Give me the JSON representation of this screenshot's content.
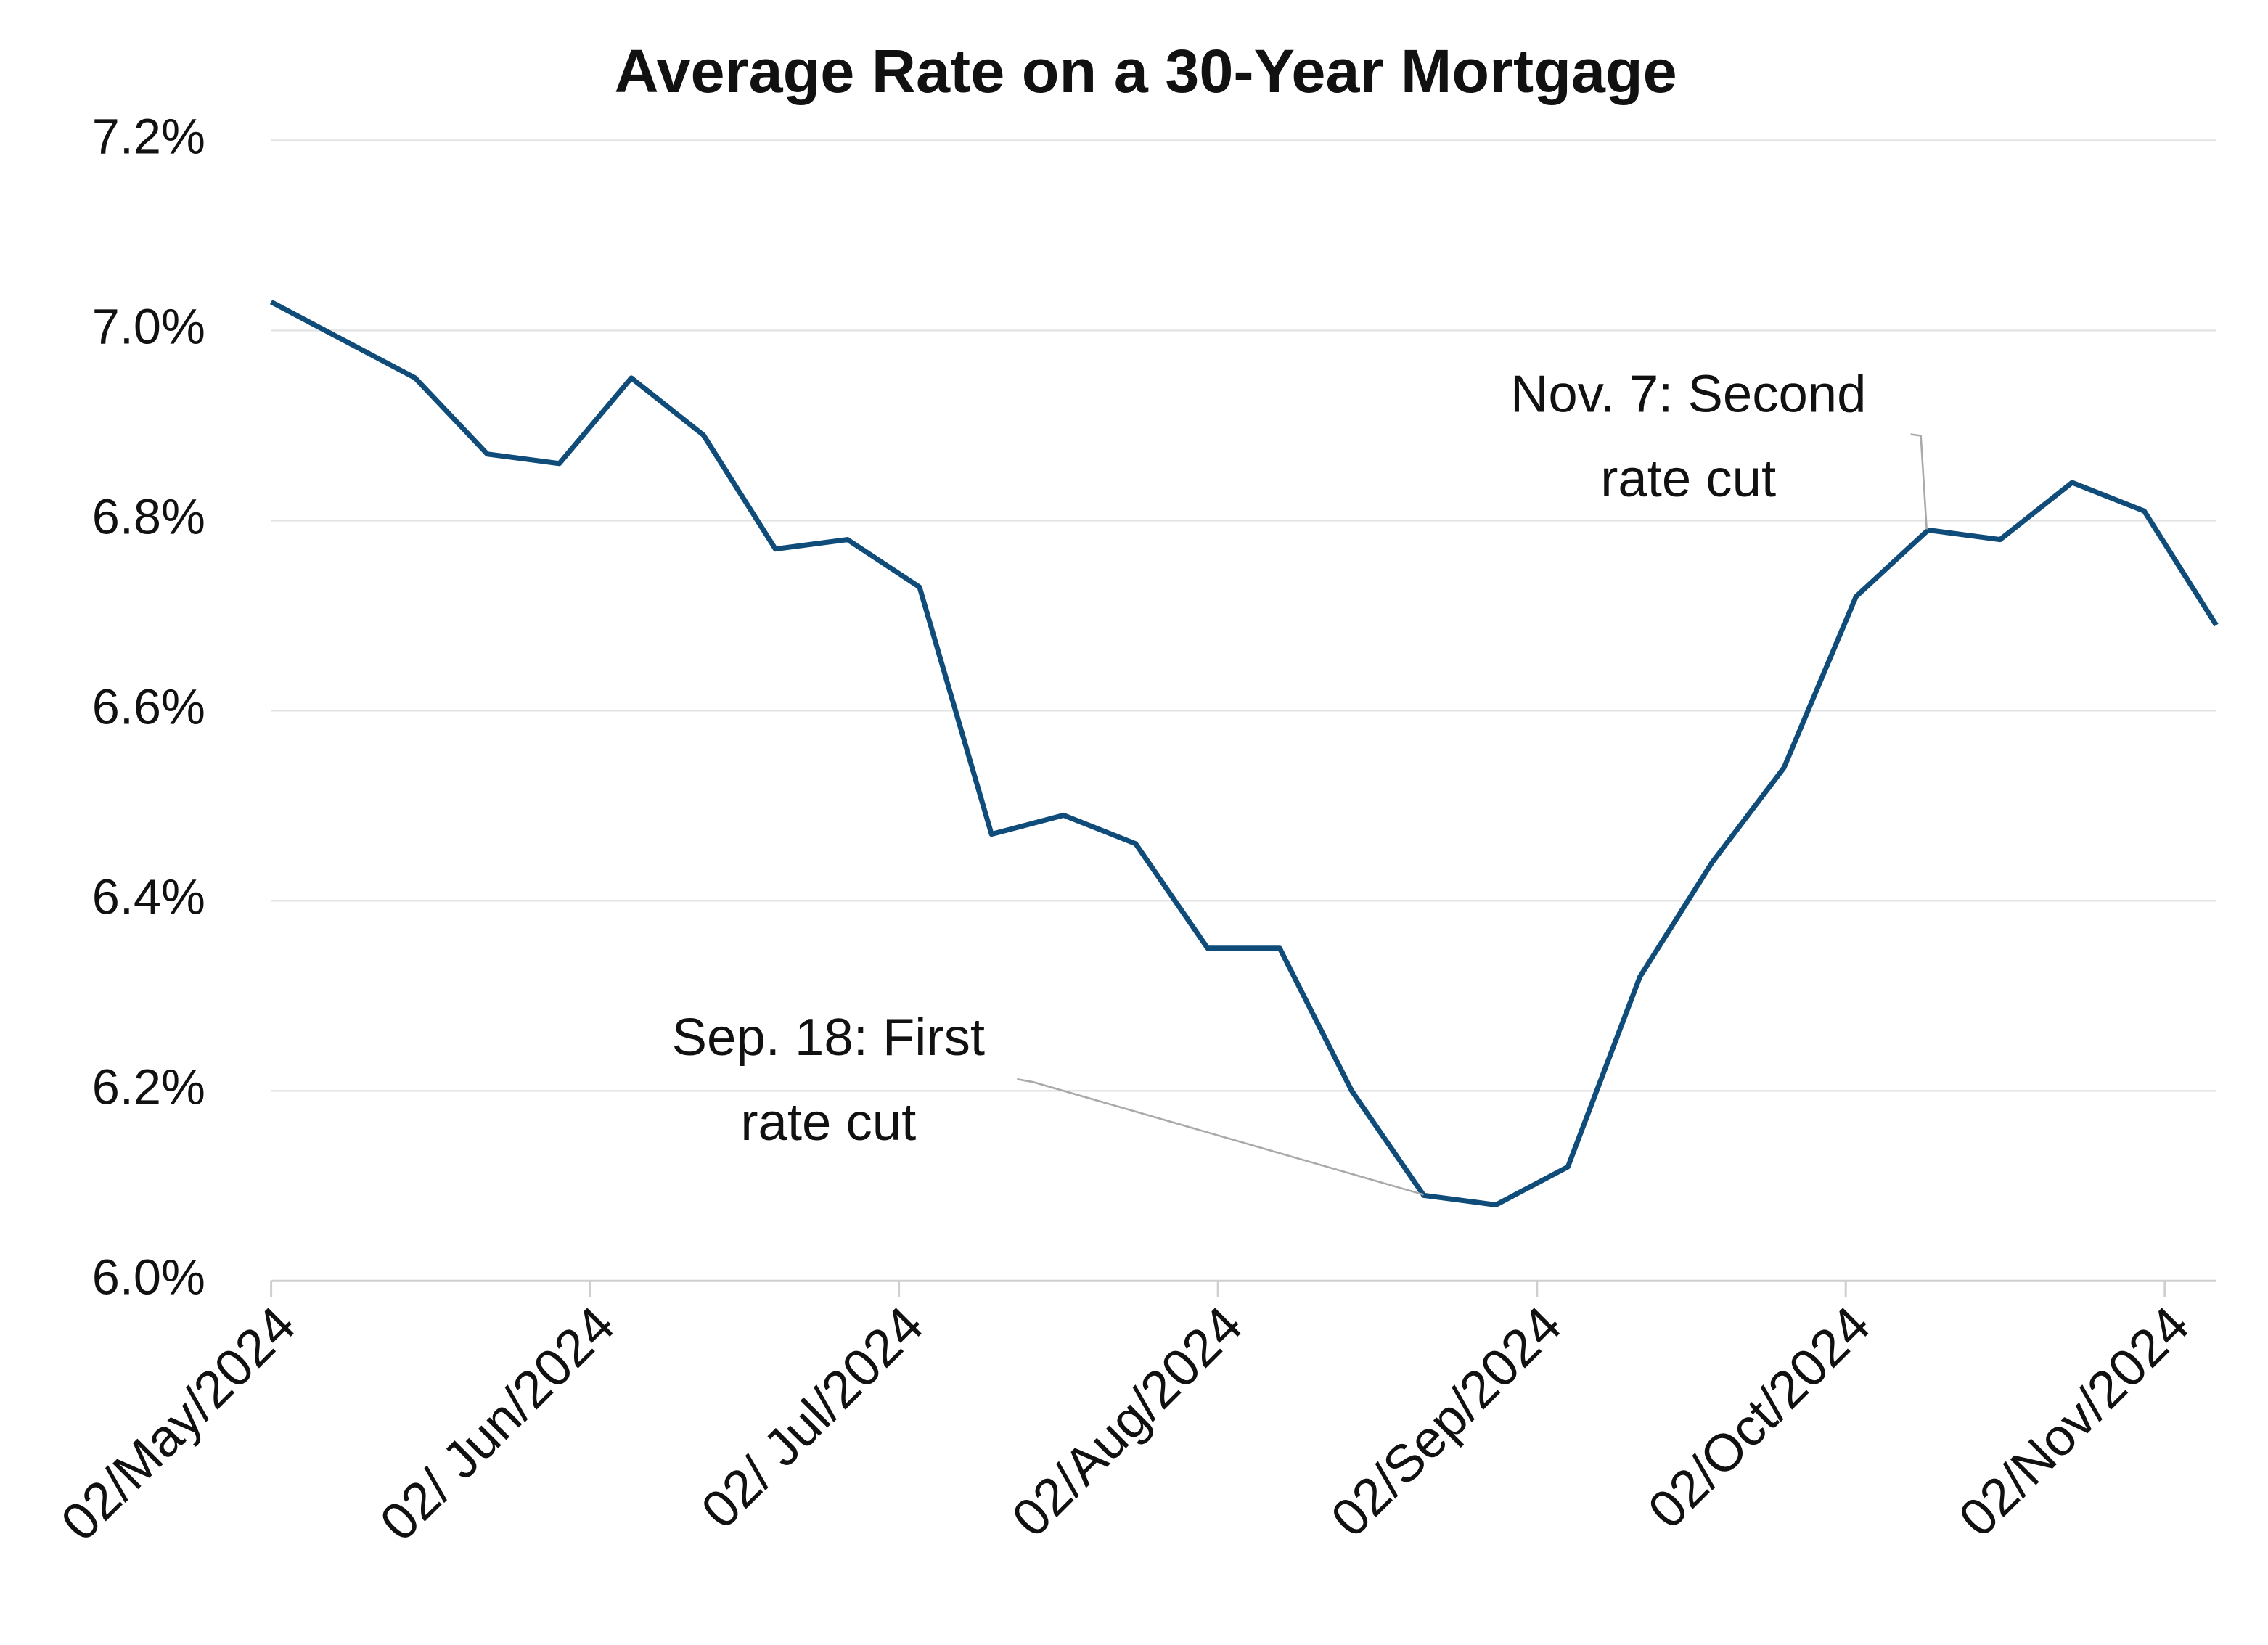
{
  "chart_data": {
    "type": "line",
    "title": "Average Rate on a 30-Year Mortgage",
    "x": [
      "2024-05-02",
      "2024-05-09",
      "2024-05-16",
      "2024-05-23",
      "2024-05-30",
      "2024-06-06",
      "2024-06-13",
      "2024-06-20",
      "2024-06-27",
      "2024-07-04",
      "2024-07-11",
      "2024-07-18",
      "2024-07-25",
      "2024-08-01",
      "2024-08-08",
      "2024-08-15",
      "2024-08-22",
      "2024-08-29",
      "2024-09-05",
      "2024-09-12",
      "2024-09-19",
      "2024-09-26",
      "2024-10-03",
      "2024-10-10",
      "2024-10-17",
      "2024-10-24",
      "2024-10-31",
      "2024-11-07"
    ],
    "series": [
      {
        "name": "Average Rate on a 30-Year Mortgage",
        "color": "#0f4c7a",
        "values": [
          7.03,
          6.99,
          6.95,
          6.87,
          6.86,
          6.95,
          6.89,
          6.77,
          6.78,
          6.73,
          6.47,
          6.49,
          6.46,
          6.35,
          6.35,
          6.2,
          6.09,
          6.08,
          6.12,
          6.32,
          6.44,
          6.54,
          6.72,
          6.79,
          6.78,
          6.84,
          6.81,
          6.69
        ]
      }
    ],
    "xlim": [
      "2024-05-02",
      "2024-11-07"
    ],
    "xticks": [
      {
        "value": "2024-05-02",
        "label": "02/May/2024"
      },
      {
        "value": "2024-06-02",
        "label": "02/ Jun/2024"
      },
      {
        "value": "2024-07-02",
        "label": "02/ Jul/2024"
      },
      {
        "value": "2024-08-02",
        "label": "02/Aug/2024"
      },
      {
        "value": "2024-09-02",
        "label": "02/Sep/2024"
      },
      {
        "value": "2024-10-02",
        "label": "02/Oct/2024"
      },
      {
        "value": "2024-11-02",
        "label": "02/Nov/2024"
      }
    ],
    "ylim": [
      6.0,
      7.2
    ],
    "yticks": [
      {
        "value": 6.0,
        "label": "6.0%"
      },
      {
        "value": 6.2,
        "label": "6.2%"
      },
      {
        "value": 6.4,
        "label": "6.4%"
      },
      {
        "value": 6.6,
        "label": "6.6%"
      },
      {
        "value": 6.8,
        "label": "6.8%"
      },
      {
        "value": 7.0,
        "label": "7.0%"
      },
      {
        "value": 7.2,
        "label": "7.2%"
      }
    ],
    "grid": true,
    "annotations": [
      {
        "lines": [
          "Sep. 18: First",
          "rate cut"
        ]
      },
      {
        "lines": [
          "Nov. 7: Second",
          "rate cut"
        ]
      }
    ]
  }
}
